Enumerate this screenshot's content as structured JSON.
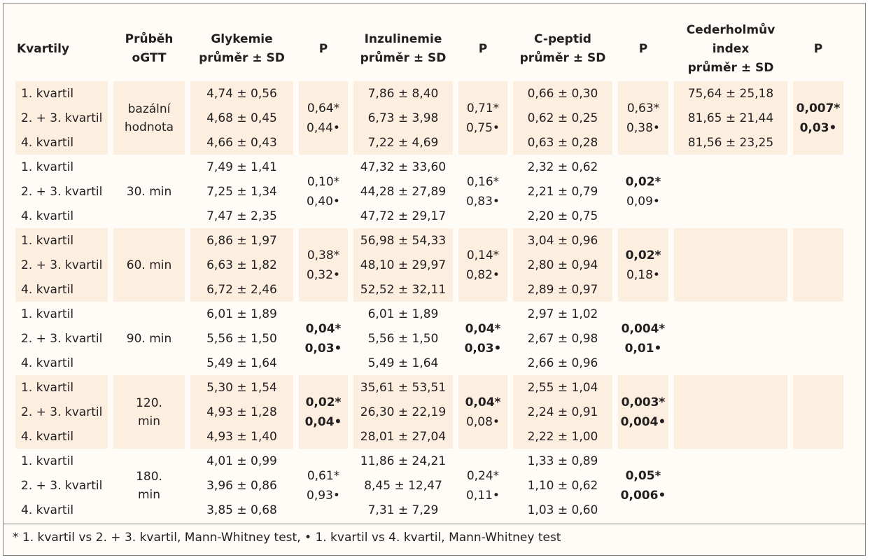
{
  "headers": {
    "kvartily": "Kvartily",
    "prubeh_1": "Průběh",
    "prubeh_2": "oGTT",
    "glykemie_1": "Glykemie",
    "glykemie_2": "průměr ± SD",
    "p": "P",
    "inzulinemie_1": "Inzulinemie",
    "inzulinemie_2": "průměr ± SD",
    "cpeptid_1": "C-peptid",
    "cpeptid_2": "průměr ± SD",
    "ceder_1": "Cederholmův",
    "ceder_2": "index",
    "ceder_3": "průměr ± SD"
  },
  "quartiles": [
    "1. kvartil",
    "2. + 3. kvartil",
    "4. kvartil"
  ],
  "rows": [
    {
      "time": [
        "bazální",
        "hodnota"
      ],
      "glykemie": [
        "4,74 ± 0,56",
        "4,68 ± 0,45",
        "4,66 ± 0,43"
      ],
      "p_gly": [
        "0,64*",
        "0,44•"
      ],
      "p_gly_bold": [
        false,
        false
      ],
      "inzulinemie": [
        "7,86 ± 8,40",
        "6,73 ± 3,98",
        "7,22 ± 4,69"
      ],
      "p_ins": [
        "0,71*",
        "0,75•"
      ],
      "p_ins_bold": [
        false,
        false
      ],
      "cpeptid": [
        "0,66 ± 0,30",
        "0,62 ± 0,25",
        "0,63 ± 0,28"
      ],
      "p_cp": [
        "0,63*",
        "0,38•"
      ],
      "p_cp_bold": [
        false,
        false
      ],
      "ceder": [
        "75,64 ± 25,18",
        "81,65 ± 21,44",
        "81,56 ± 23,25"
      ],
      "p_ce": [
        "0,007*",
        "0,03•"
      ],
      "p_ce_bold": [
        true,
        true
      ]
    },
    {
      "time": [
        "30. min"
      ],
      "glykemie": [
        "7,49 ± 1,41",
        "7,25 ± 1,34",
        "7,47 ± 2,35"
      ],
      "p_gly": [
        "0,10*",
        "0,40•"
      ],
      "p_gly_bold": [
        false,
        false
      ],
      "inzulinemie": [
        "47,32 ± 33,60",
        "44,28 ± 27,89",
        "47,72 ± 29,17"
      ],
      "p_ins": [
        "0,16*",
        "0,83•"
      ],
      "p_ins_bold": [
        false,
        false
      ],
      "cpeptid": [
        "2,32 ± 0,62",
        "2,21 ± 0,79",
        "2,20 ± 0,75"
      ],
      "p_cp": [
        "0,02*",
        "0,09•"
      ],
      "p_cp_bold": [
        true,
        false
      ]
    },
    {
      "time": [
        "60. min"
      ],
      "glykemie": [
        "6,86 ± 1,97",
        "6,63 ± 1,82",
        "6,72 ± 2,46"
      ],
      "p_gly": [
        "0,38*",
        "0,32•"
      ],
      "p_gly_bold": [
        false,
        false
      ],
      "inzulinemie": [
        "56,98 ± 54,33",
        "48,10 ± 29,97",
        "52,52 ± 32,11"
      ],
      "p_ins": [
        "0,14*",
        "0,82•"
      ],
      "p_ins_bold": [
        false,
        false
      ],
      "cpeptid": [
        "3,04 ± 0,96",
        "2,80 ± 0,94",
        "2,89 ± 0,97"
      ],
      "p_cp": [
        "0,02*",
        "0,18•"
      ],
      "p_cp_bold": [
        true,
        false
      ]
    },
    {
      "time": [
        "90. min"
      ],
      "glykemie": [
        "6,01 ± 1,89",
        "5,56 ± 1,50",
        "5,49 ± 1,64"
      ],
      "p_gly": [
        "0,04*",
        "0,03•"
      ],
      "p_gly_bold": [
        true,
        true
      ],
      "inzulinemie": [
        "6,01 ± 1,89",
        "5,56 ± 1,50",
        "5,49 ± 1,64"
      ],
      "p_ins": [
        "0,04*",
        "0,03•"
      ],
      "p_ins_bold": [
        true,
        true
      ],
      "cpeptid": [
        "2,97 ± 1,02",
        "2,67 ± 0,98",
        "2,66 ± 0,96"
      ],
      "p_cp": [
        "0,004*",
        "0,01•"
      ],
      "p_cp_bold": [
        true,
        true
      ]
    },
    {
      "time": [
        "120.",
        "min"
      ],
      "glykemie": [
        "5,30 ± 1,54",
        "4,93 ± 1,28",
        "4,93 ± 1,40"
      ],
      "p_gly": [
        "0,02*",
        "0,04•"
      ],
      "p_gly_bold": [
        true,
        true
      ],
      "inzulinemie": [
        "35,61 ± 53,51",
        "26,30 ± 22,19",
        "28,01 ± 27,04"
      ],
      "p_ins": [
        "0,04*",
        "0,08•"
      ],
      "p_ins_bold": [
        true,
        false
      ],
      "cpeptid": [
        "2,55 ± 1,04",
        "2,24 ± 0,91",
        "2,22 ± 1,00"
      ],
      "p_cp": [
        "0,003*",
        "0,004•"
      ],
      "p_cp_bold": [
        true,
        true
      ]
    },
    {
      "time": [
        "180.",
        "min"
      ],
      "glykemie": [
        "4,01 ± 0,99",
        "3,96 ± 0,86",
        "3,85 ± 0,68"
      ],
      "p_gly": [
        "0,61*",
        "0,93•"
      ],
      "p_gly_bold": [
        false,
        false
      ],
      "inzulinemie": [
        "11,86 ± 24,21",
        "8,45 ± 12,47",
        "7,31 ± 7,29"
      ],
      "p_ins": [
        "0,24*",
        "0,11•"
      ],
      "p_ins_bold": [
        false,
        false
      ],
      "cpeptid": [
        "1,33 ± 0,89",
        "1,10 ± 0,62",
        "1,03 ± 0,60"
      ],
      "p_cp": [
        "0,05*",
        "0,006•"
      ],
      "p_cp_bold": [
        true,
        true
      ]
    }
  ],
  "footnote": "* 1. kvartil vs 2. + 3. kvartil, Mann-Whitney test, • 1. kvartil vs 4. kvartil, Mann-Whitney test",
  "colors": {
    "shade": "#fcefe0",
    "border": "#8a8279",
    "text": "#231f20"
  }
}
